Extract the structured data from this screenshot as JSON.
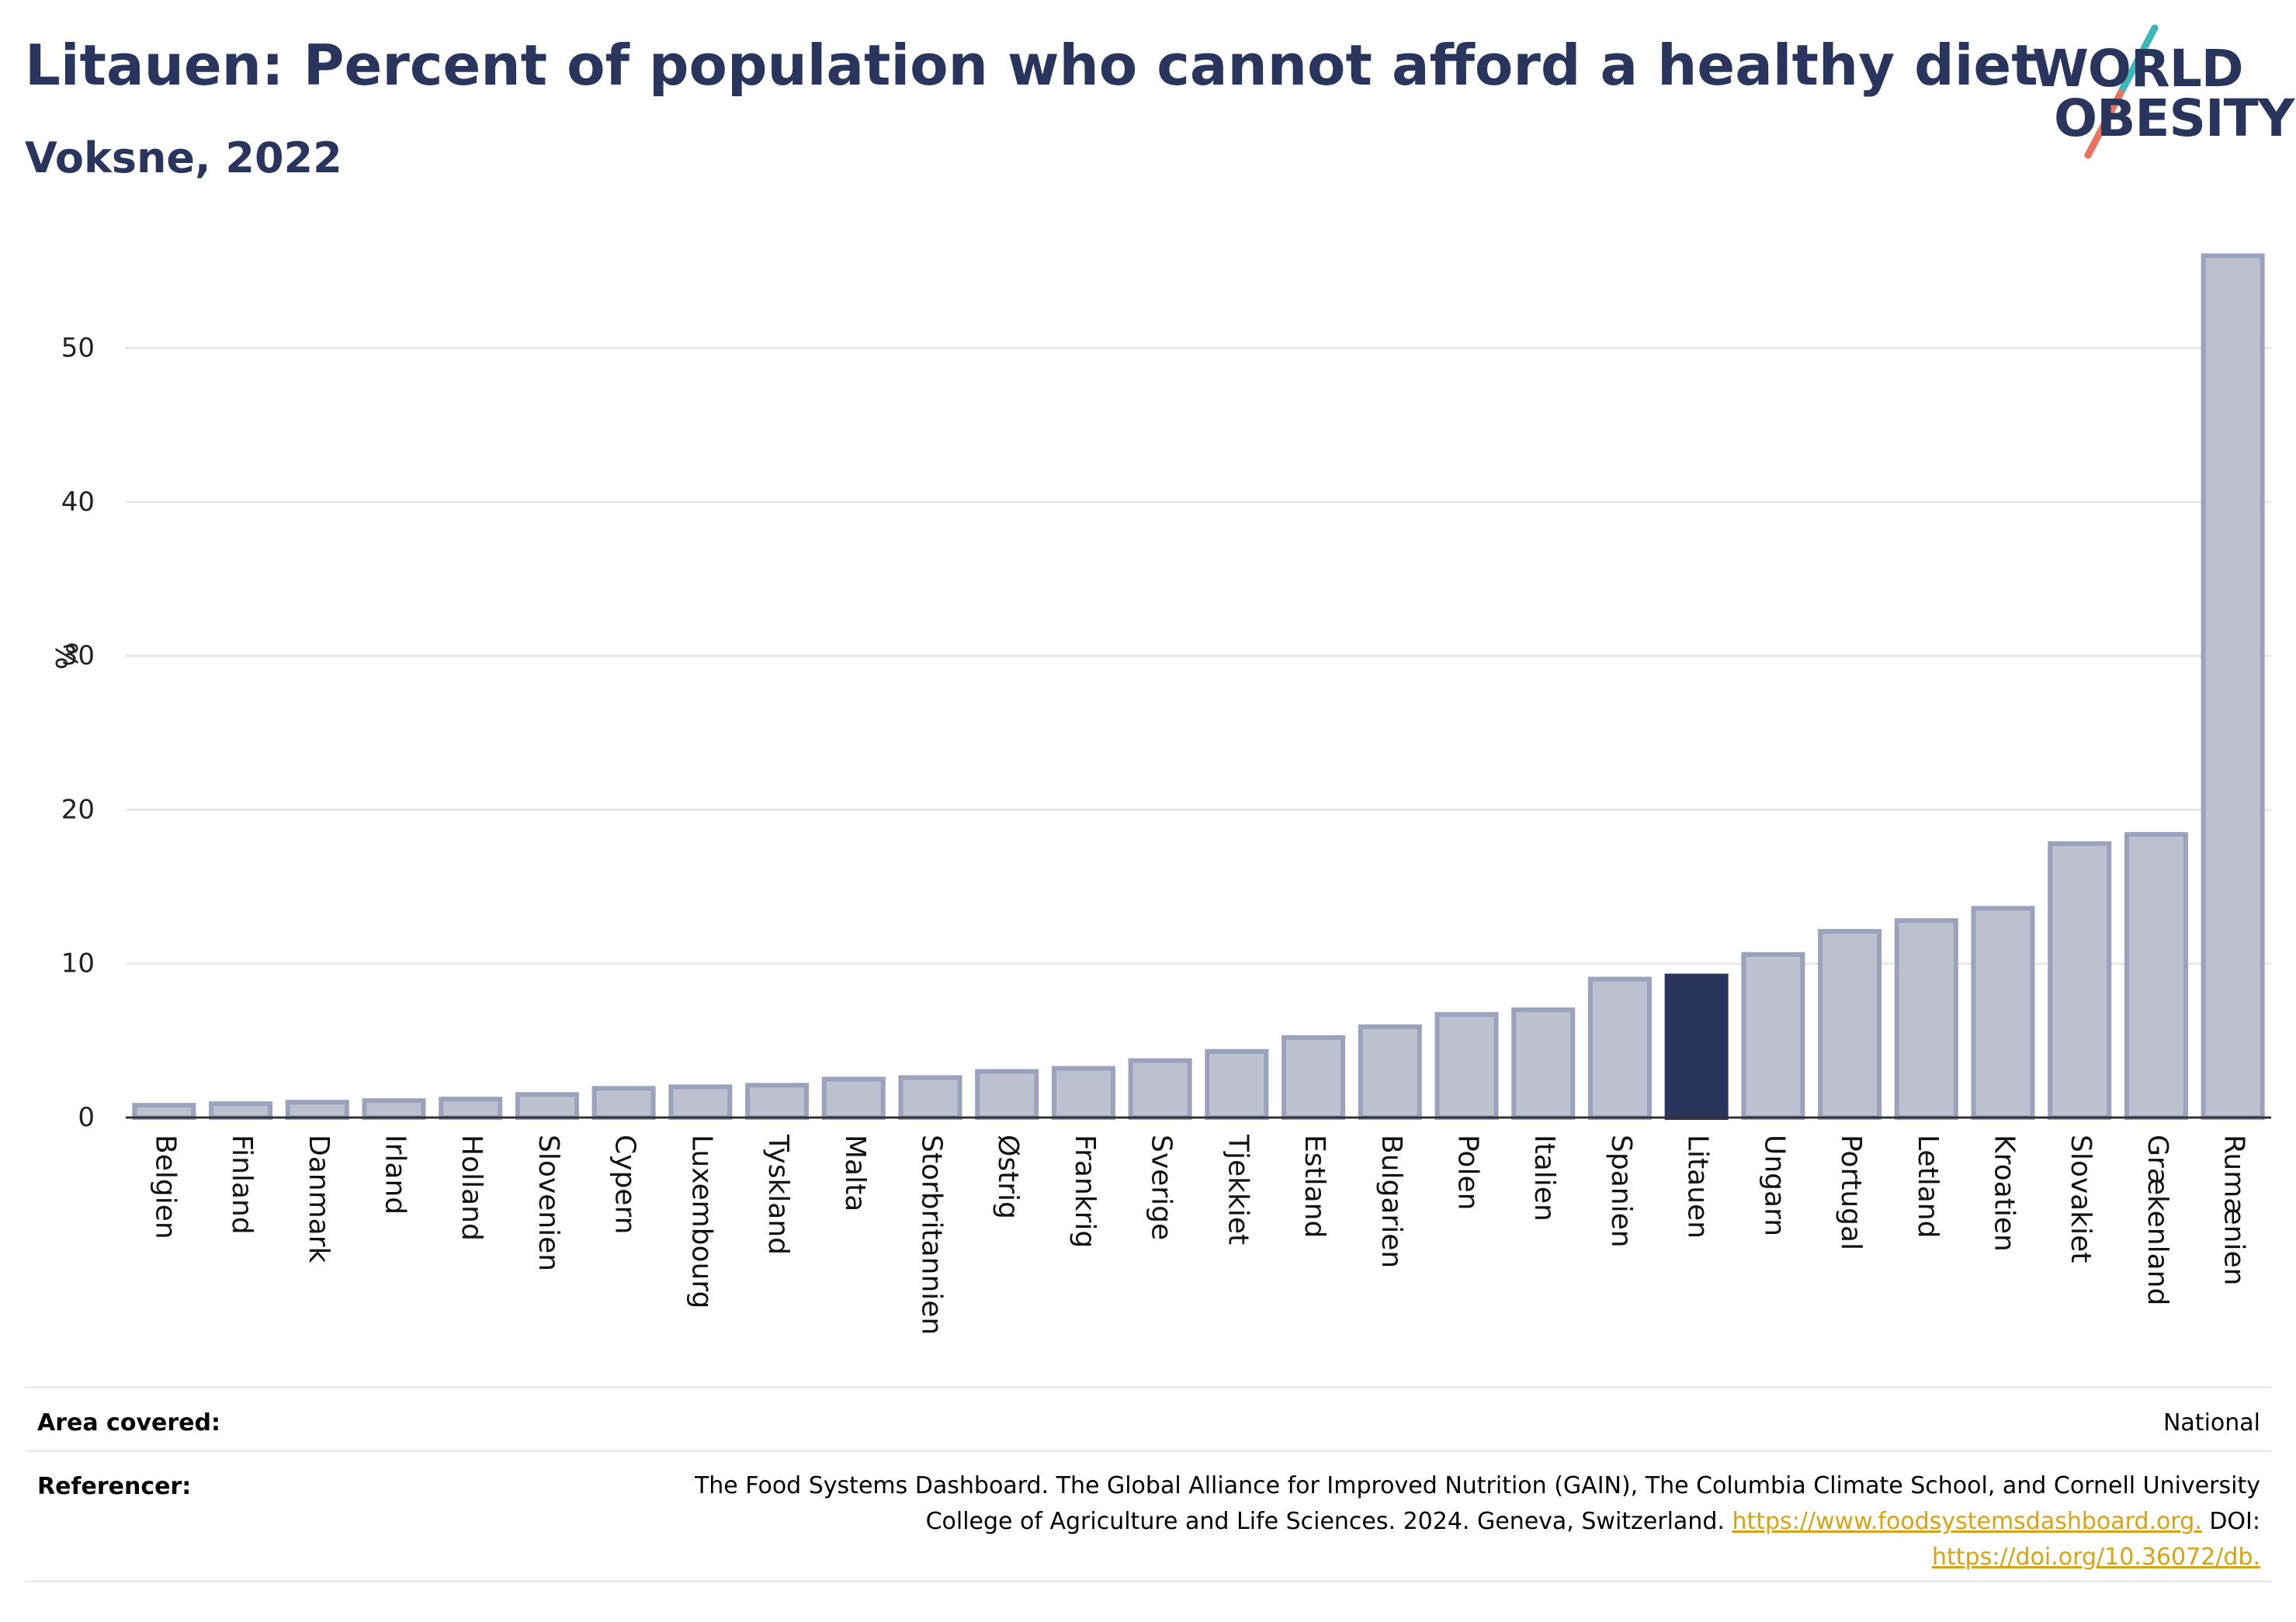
{
  "title": "Litauen: Percent of population who cannot afford a healthy diet",
  "subtitle": "Voksne, 2022",
  "logo": {
    "line1": "WORLD",
    "line2": "OBESITY"
  },
  "colors": {
    "highlight": "#2a355e",
    "bar_fill": "#bcc0cf",
    "bar_stroke": "#9ca2bb",
    "link": "#d6a413",
    "gridline": "#e8e8e8"
  },
  "chart_data": {
    "type": "bar",
    "ylabel": "%",
    "ylim": [
      0,
      57
    ],
    "yticks": [
      0,
      10,
      20,
      30,
      40,
      50
    ],
    "grid": true,
    "highlight": "Litauen",
    "categories": [
      "Belgien",
      "Finland",
      "Danmark",
      "Irland",
      "Holland",
      "Slovenien",
      "Cypern",
      "Luxembourg",
      "Tyskland",
      "Malta",
      "Storbritannien",
      "Østrig",
      "Frankrig",
      "Sverige",
      "Tjekkiet",
      "Estland",
      "Bulgarien",
      "Polen",
      "Italien",
      "Spanien",
      "Litauen",
      "Ungarn",
      "Portugal",
      "Letland",
      "Kroatien",
      "Slovakiet",
      "Grækenland",
      "Rumænien"
    ],
    "values": [
      0.8,
      0.9,
      1.0,
      1.1,
      1.2,
      1.5,
      1.9,
      2.0,
      2.1,
      2.5,
      2.6,
      3.0,
      3.2,
      3.7,
      4.3,
      5.2,
      5.9,
      6.7,
      7.0,
      9.0,
      9.2,
      10.6,
      12.1,
      12.8,
      13.6,
      17.8,
      18.4,
      56.0
    ]
  },
  "footer": {
    "area_label": "Area covered:",
    "area_value": "National",
    "ref_label": "Referencer:",
    "ref_line1": "The Food Systems Dashboard. The Global Alliance for Improved Nutrition (GAIN), The Columbia Climate School, and Cornell University",
    "ref_line2": "College of Agriculture and Life Sciences. 2024. Geneva, Switzerland.",
    "ref_link1": "https://www.foodsystemsdashboard.org.",
    "ref_doi": "DOI:",
    "ref_link2": "https://doi.org/10.36072/db."
  }
}
